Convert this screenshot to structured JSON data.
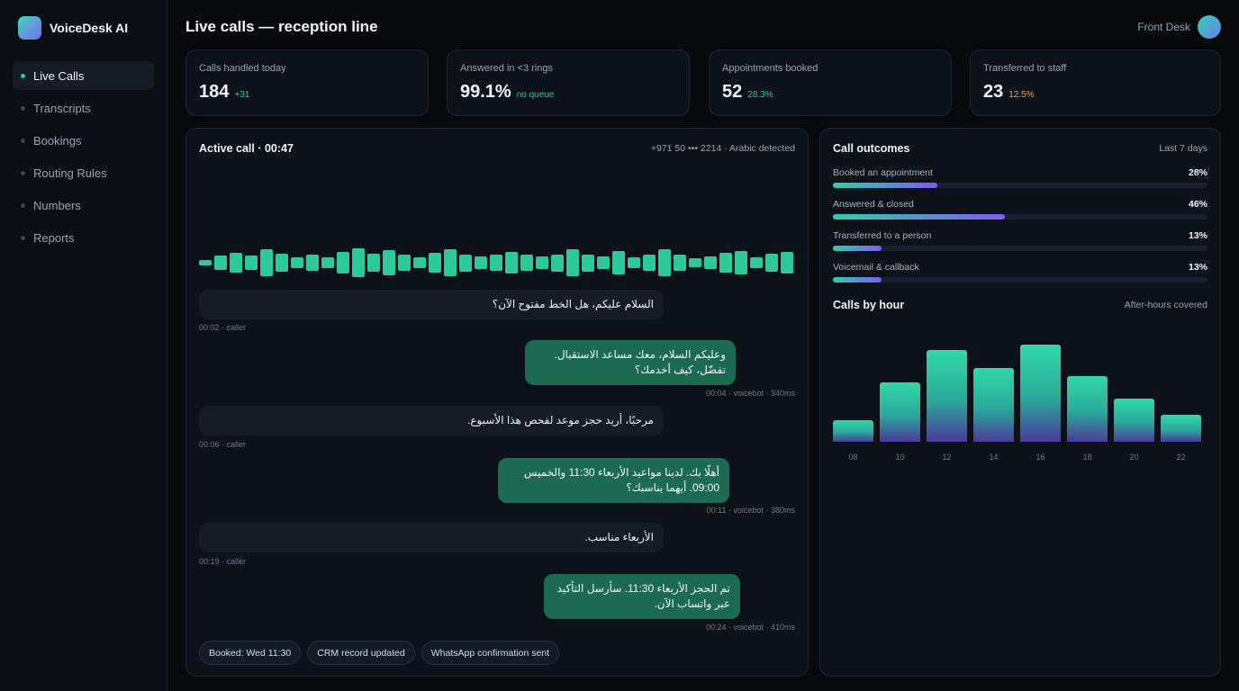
{
  "app": {
    "name": "VoiceDesk AI"
  },
  "nav": [
    {
      "label": "Live Calls",
      "active": true
    },
    {
      "label": "Transcripts",
      "active": false
    },
    {
      "label": "Bookings",
      "active": false
    },
    {
      "label": "Routing Rules",
      "active": false
    },
    {
      "label": "Numbers",
      "active": false
    },
    {
      "label": "Reports",
      "active": false
    }
  ],
  "header": {
    "title": "Live calls — reception line",
    "user": "Front Desk"
  },
  "kpis": [
    {
      "label": "Calls handled today",
      "value": "184",
      "delta": "+31"
    },
    {
      "label": "Answered in <3 rings",
      "value": "99.1%",
      "delta": "no queue"
    },
    {
      "label": "Appointments booked",
      "value": "52",
      "delta": "28.3%"
    },
    {
      "label": "Transferred to staff",
      "value": "23",
      "delta": "12.5%"
    }
  ],
  "call": {
    "title": "Active call · 00:47",
    "meta": "+971 50 ••• 2214 · Arabic detected",
    "waveform": [
      0.18,
      0.4,
      0.6,
      0.4,
      0.78,
      0.55,
      0.3,
      0.46,
      0.3,
      0.62,
      0.86,
      0.54,
      0.72,
      0.46,
      0.32,
      0.56,
      0.78,
      0.5,
      0.38,
      0.46,
      0.62,
      0.46,
      0.38,
      0.5,
      0.78,
      0.5,
      0.38,
      0.68,
      0.32,
      0.46,
      0.8,
      0.46,
      0.24,
      0.38,
      0.6,
      0.68,
      0.34,
      0.52,
      0.62
    ],
    "messages": [
      {
        "role": "caller",
        "text": "السلام عليكم، هل الخط مفتوح الآن؟",
        "meta": "00:02 · caller"
      },
      {
        "role": "bot",
        "text": "وعليكم السلام، معك مساعد الاستقبال. تفضّل، كيف أخدمك؟",
        "meta": "00:04 · voicebot · 340ms"
      },
      {
        "role": "caller",
        "text": "مرحبًا، أريد حجز موعد لفحص هذا الأسبوع.",
        "meta": "00:06 · caller"
      },
      {
        "role": "bot",
        "text": "أهلًا بك. لدينا مواعيد الأربعاء 11:30 والخميس 09:00. أيهما يناسبك؟",
        "meta": "00:11 · voicebot · 380ms"
      },
      {
        "role": "caller",
        "text": "الأربعاء مناسب.",
        "meta": "00:19 · caller"
      },
      {
        "role": "bot",
        "text": "تم الحجز الأربعاء 11:30. سأرسل التأكيد عبر واتساب الآن.",
        "meta": "00:24 · voicebot · 410ms"
      }
    ],
    "chips": [
      "Booked: Wed 11:30",
      "CRM record updated",
      "WhatsApp confirmation sent"
    ]
  },
  "outcomes": {
    "title": "Call outcomes",
    "range": "Last 7 days",
    "items": [
      {
        "label": "Booked an appointment",
        "pct": "28%",
        "value": 0.28
      },
      {
        "label": "Answered & closed",
        "pct": "46%",
        "value": 0.46
      },
      {
        "label": "Transferred to a person",
        "pct": "13%",
        "value": 0.13
      },
      {
        "label": "Voicemail & callback",
        "pct": "13%",
        "value": 0.13
      }
    ]
  },
  "hours": {
    "title": "Calls by hour",
    "note": "After-hours covered",
    "labels": [
      "08",
      "10",
      "12",
      "14",
      "16",
      "18",
      "20",
      "22"
    ],
    "values": [
      0.22,
      0.61,
      0.94,
      0.76,
      1.0,
      0.68,
      0.44,
      0.28
    ]
  }
}
